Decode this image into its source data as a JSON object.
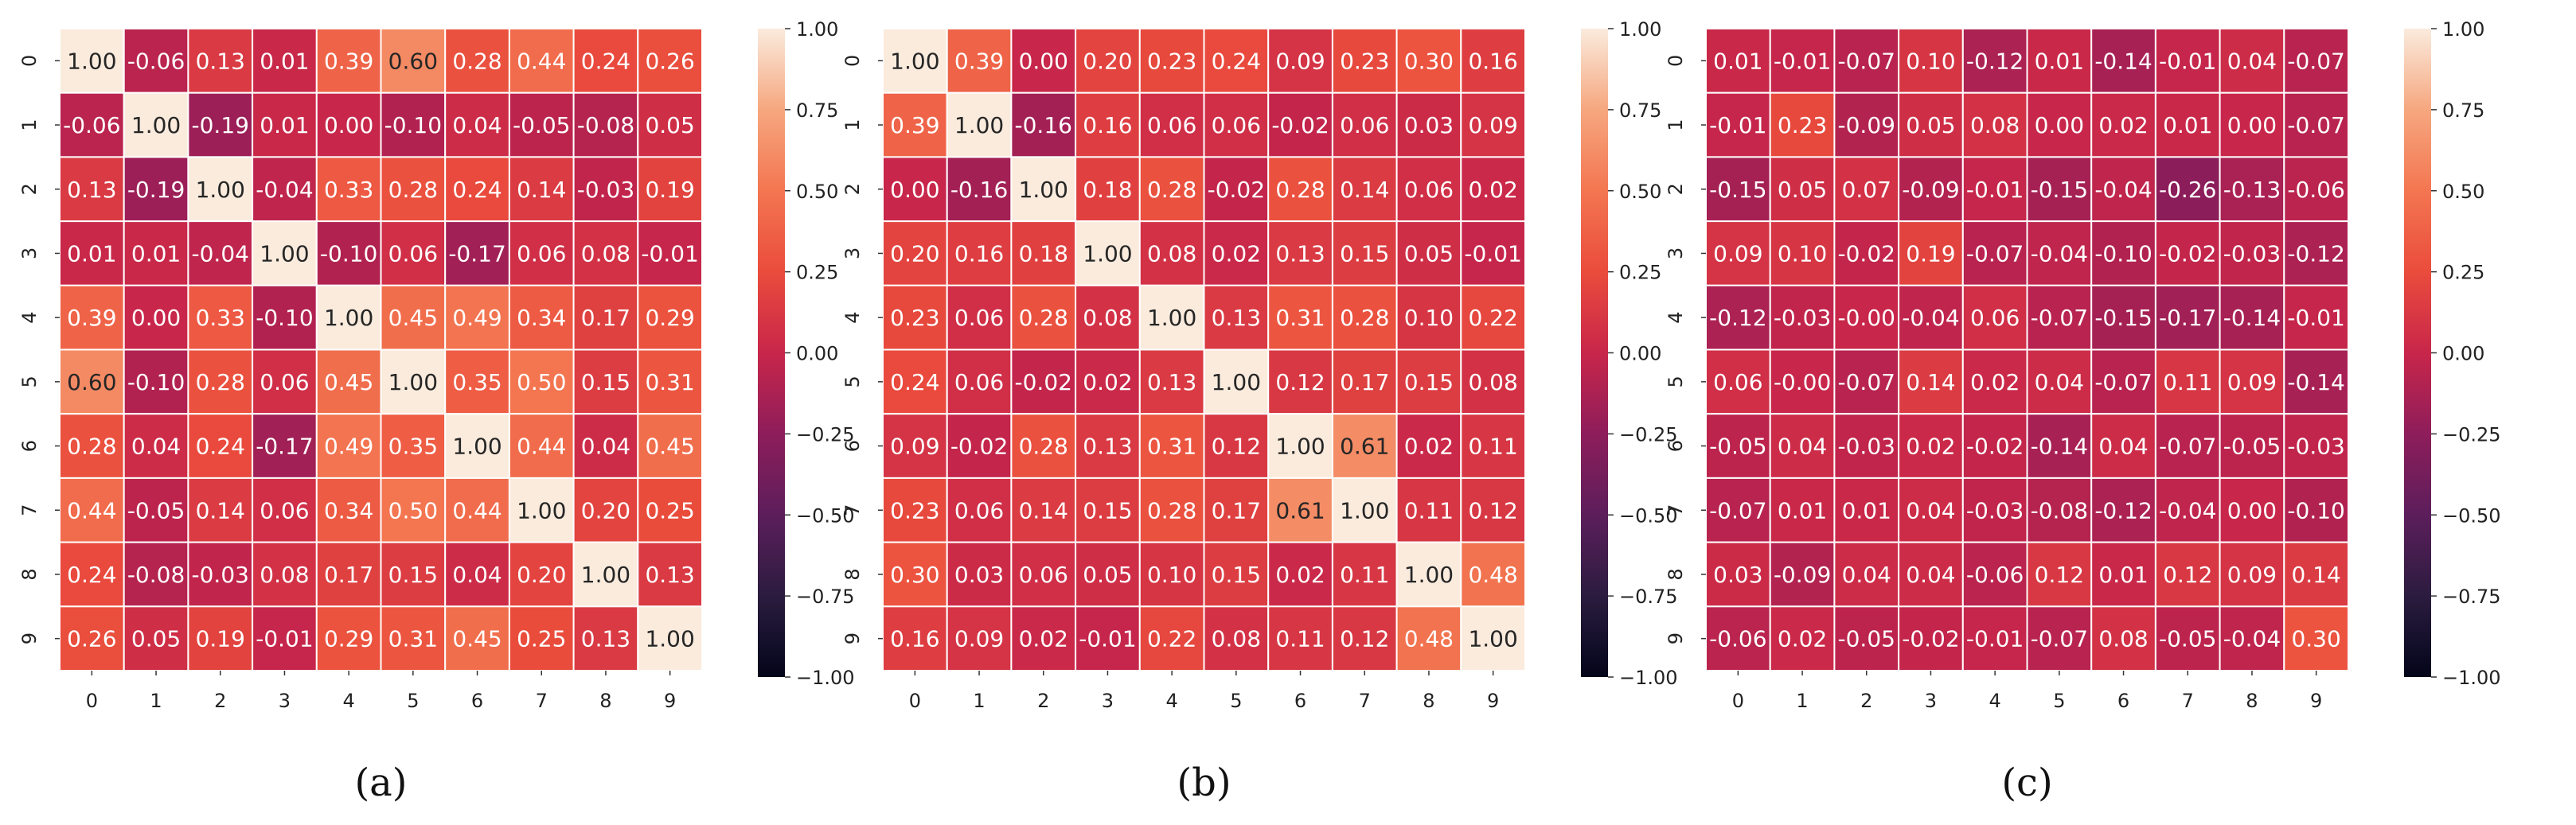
{
  "chart_data": [
    {
      "type": "heatmap",
      "panel_label": "(a)",
      "x_tick_labels": [
        "0",
        "1",
        "2",
        "3",
        "4",
        "5",
        "6",
        "7",
        "8",
        "9"
      ],
      "y_tick_labels": [
        "0",
        "1",
        "2",
        "3",
        "4",
        "5",
        "6",
        "7",
        "8",
        "9"
      ],
      "values": [
        [
          1.0,
          -0.06,
          0.13,
          0.01,
          0.39,
          0.6,
          0.28,
          0.44,
          0.24,
          0.26
        ],
        [
          -0.06,
          1.0,
          -0.19,
          0.01,
          0.0,
          -0.1,
          0.04,
          -0.05,
          -0.08,
          0.05
        ],
        [
          0.13,
          -0.19,
          1.0,
          -0.04,
          0.33,
          0.28,
          0.24,
          0.14,
          -0.03,
          0.19
        ],
        [
          0.01,
          0.01,
          -0.04,
          1.0,
          -0.1,
          0.06,
          -0.17,
          0.06,
          0.08,
          -0.01
        ],
        [
          0.39,
          0.0,
          0.33,
          -0.1,
          1.0,
          0.45,
          0.49,
          0.34,
          0.17,
          0.29
        ],
        [
          0.6,
          -0.1,
          0.28,
          0.06,
          0.45,
          1.0,
          0.35,
          0.5,
          0.15,
          0.31
        ],
        [
          0.28,
          0.04,
          0.24,
          -0.17,
          0.49,
          0.35,
          1.0,
          0.44,
          0.04,
          0.45
        ],
        [
          0.44,
          -0.05,
          0.14,
          0.06,
          0.34,
          0.5,
          0.44,
          1.0,
          0.2,
          0.25
        ],
        [
          0.24,
          -0.08,
          -0.03,
          0.08,
          0.17,
          0.15,
          0.04,
          0.2,
          1.0,
          0.13
        ],
        [
          0.26,
          0.05,
          0.19,
          -0.01,
          0.29,
          0.31,
          0.45,
          0.25,
          0.13,
          1.0
        ]
      ],
      "value_labels": [
        [
          "1.00",
          "-0.06",
          "0.13",
          "0.01",
          "0.39",
          "0.60",
          "0.28",
          "0.44",
          "0.24",
          "0.26"
        ],
        [
          "-0.06",
          "1.00",
          "-0.19",
          "0.01",
          "0.00",
          "-0.10",
          "0.04",
          "-0.05",
          "-0.08",
          "0.05"
        ],
        [
          "0.13",
          "-0.19",
          "1.00",
          "-0.04",
          "0.33",
          "0.28",
          "0.24",
          "0.14",
          "-0.03",
          "0.19"
        ],
        [
          "0.01",
          "0.01",
          "-0.04",
          "1.00",
          "-0.10",
          "0.06",
          "-0.17",
          "0.06",
          "0.08",
          "-0.01"
        ],
        [
          "0.39",
          "0.00",
          "0.33",
          "-0.10",
          "1.00",
          "0.45",
          "0.49",
          "0.34",
          "0.17",
          "0.29"
        ],
        [
          "0.60",
          "-0.10",
          "0.28",
          "0.06",
          "0.45",
          "1.00",
          "0.35",
          "0.50",
          "0.15",
          "0.31"
        ],
        [
          "0.28",
          "0.04",
          "0.24",
          "-0.17",
          "0.49",
          "0.35",
          "1.00",
          "0.44",
          "0.04",
          "0.45"
        ],
        [
          "0.44",
          "-0.05",
          "0.14",
          "0.06",
          "0.34",
          "0.50",
          "0.44",
          "1.00",
          "0.20",
          "0.25"
        ],
        [
          "0.24",
          "-0.08",
          "-0.03",
          "0.08",
          "0.17",
          "0.15",
          "0.04",
          "0.20",
          "1.00",
          "0.13"
        ],
        [
          "0.26",
          "0.05",
          "0.19",
          "-0.01",
          "0.29",
          "0.31",
          "0.45",
          "0.25",
          "0.13",
          "1.00"
        ]
      ],
      "colorbar": {
        "range": [
          -1.0,
          1.0
        ],
        "tick_labels": [
          "1.00",
          "0.75",
          "0.50",
          "0.25",
          "0.00",
          "−0.25",
          "−0.50",
          "−0.75",
          "−1.00"
        ],
        "tick_values": [
          1.0,
          0.75,
          0.5,
          0.25,
          0.0,
          -0.25,
          -0.5,
          -0.75,
          -1.0
        ]
      }
    },
    {
      "type": "heatmap",
      "panel_label": "(b)",
      "x_tick_labels": [
        "0",
        "1",
        "2",
        "3",
        "4",
        "5",
        "6",
        "7",
        "8",
        "9"
      ],
      "y_tick_labels": [
        "0",
        "1",
        "2",
        "3",
        "4",
        "5",
        "6",
        "7",
        "8",
        "9"
      ],
      "values": [
        [
          1.0,
          0.39,
          0.0,
          0.2,
          0.23,
          0.24,
          0.09,
          0.23,
          0.3,
          0.16
        ],
        [
          0.39,
          1.0,
          -0.16,
          0.16,
          0.06,
          0.06,
          -0.02,
          0.06,
          0.03,
          0.09
        ],
        [
          0.0,
          -0.16,
          1.0,
          0.18,
          0.28,
          -0.02,
          0.28,
          0.14,
          0.06,
          0.02
        ],
        [
          0.2,
          0.16,
          0.18,
          1.0,
          0.08,
          0.02,
          0.13,
          0.15,
          0.05,
          -0.01
        ],
        [
          0.23,
          0.06,
          0.28,
          0.08,
          1.0,
          0.13,
          0.31,
          0.28,
          0.1,
          0.22
        ],
        [
          0.24,
          0.06,
          -0.02,
          0.02,
          0.13,
          1.0,
          0.12,
          0.17,
          0.15,
          0.08
        ],
        [
          0.09,
          -0.02,
          0.28,
          0.13,
          0.31,
          0.12,
          1.0,
          0.61,
          0.02,
          0.11
        ],
        [
          0.23,
          0.06,
          0.14,
          0.15,
          0.28,
          0.17,
          0.61,
          1.0,
          0.11,
          0.12
        ],
        [
          0.3,
          0.03,
          0.06,
          0.05,
          0.1,
          0.15,
          0.02,
          0.11,
          1.0,
          0.48
        ],
        [
          0.16,
          0.09,
          0.02,
          -0.01,
          0.22,
          0.08,
          0.11,
          0.12,
          0.48,
          1.0
        ]
      ],
      "value_labels": [
        [
          "1.00",
          "0.39",
          "0.00",
          "0.20",
          "0.23",
          "0.24",
          "0.09",
          "0.23",
          "0.30",
          "0.16"
        ],
        [
          "0.39",
          "1.00",
          "-0.16",
          "0.16",
          "0.06",
          "0.06",
          "-0.02",
          "0.06",
          "0.03",
          "0.09"
        ],
        [
          "0.00",
          "-0.16",
          "1.00",
          "0.18",
          "0.28",
          "-0.02",
          "0.28",
          "0.14",
          "0.06",
          "0.02"
        ],
        [
          "0.20",
          "0.16",
          "0.18",
          "1.00",
          "0.08",
          "0.02",
          "0.13",
          "0.15",
          "0.05",
          "-0.01"
        ],
        [
          "0.23",
          "0.06",
          "0.28",
          "0.08",
          "1.00",
          "0.13",
          "0.31",
          "0.28",
          "0.10",
          "0.22"
        ],
        [
          "0.24",
          "0.06",
          "-0.02",
          "0.02",
          "0.13",
          "1.00",
          "0.12",
          "0.17",
          "0.15",
          "0.08"
        ],
        [
          "0.09",
          "-0.02",
          "0.28",
          "0.13",
          "0.31",
          "0.12",
          "1.00",
          "0.61",
          "0.02",
          "0.11"
        ],
        [
          "0.23",
          "0.06",
          "0.14",
          "0.15",
          "0.28",
          "0.17",
          "0.61",
          "1.00",
          "0.11",
          "0.12"
        ],
        [
          "0.30",
          "0.03",
          "0.06",
          "0.05",
          "0.10",
          "0.15",
          "0.02",
          "0.11",
          "1.00",
          "0.48"
        ],
        [
          "0.16",
          "0.09",
          "0.02",
          "-0.01",
          "0.22",
          "0.08",
          "0.11",
          "0.12",
          "0.48",
          "1.00"
        ]
      ],
      "colorbar": {
        "range": [
          -1.0,
          1.0
        ],
        "tick_labels": [
          "1.00",
          "0.75",
          "0.50",
          "0.25",
          "0.00",
          "−0.25",
          "−0.50",
          "−0.75",
          "−1.00"
        ],
        "tick_values": [
          1.0,
          0.75,
          0.5,
          0.25,
          0.0,
          -0.25,
          -0.5,
          -0.75,
          -1.0
        ]
      }
    },
    {
      "type": "heatmap",
      "panel_label": "(c)",
      "x_tick_labels": [
        "0",
        "1",
        "2",
        "3",
        "4",
        "5",
        "6",
        "7",
        "8",
        "9"
      ],
      "y_tick_labels": [
        "0",
        "1",
        "2",
        "3",
        "4",
        "5",
        "6",
        "7",
        "8",
        "9"
      ],
      "values": [
        [
          0.01,
          -0.01,
          -0.07,
          0.1,
          -0.12,
          0.01,
          -0.14,
          -0.01,
          0.04,
          -0.07
        ],
        [
          -0.01,
          0.23,
          -0.09,
          0.05,
          0.08,
          0.0,
          0.02,
          0.01,
          0.0,
          -0.07
        ],
        [
          -0.15,
          0.05,
          0.07,
          -0.09,
          -0.01,
          -0.15,
          -0.04,
          -0.26,
          -0.13,
          -0.06
        ],
        [
          0.09,
          0.1,
          -0.02,
          0.19,
          -0.07,
          -0.04,
          -0.1,
          -0.02,
          -0.03,
          -0.12
        ],
        [
          -0.12,
          -0.03,
          -0.0,
          -0.04,
          0.06,
          -0.07,
          -0.15,
          -0.17,
          -0.14,
          -0.01
        ],
        [
          0.06,
          -0.0,
          -0.07,
          0.14,
          0.02,
          0.04,
          -0.07,
          0.11,
          0.09,
          -0.14
        ],
        [
          -0.05,
          0.04,
          -0.03,
          0.02,
          -0.02,
          -0.14,
          0.04,
          -0.07,
          -0.05,
          -0.03
        ],
        [
          -0.07,
          0.01,
          0.01,
          0.04,
          -0.03,
          -0.08,
          -0.12,
          -0.04,
          0.0,
          -0.1
        ],
        [
          0.03,
          -0.09,
          0.04,
          0.04,
          -0.06,
          0.12,
          0.01,
          0.12,
          0.09,
          0.14
        ],
        [
          -0.06,
          0.02,
          -0.05,
          -0.02,
          -0.01,
          -0.07,
          0.08,
          -0.05,
          -0.04,
          0.3
        ]
      ],
      "value_labels": [
        [
          "0.01",
          "-0.01",
          "-0.07",
          "0.10",
          "-0.12",
          "0.01",
          "-0.14",
          "-0.01",
          "0.04",
          "-0.07"
        ],
        [
          "-0.01",
          "0.23",
          "-0.09",
          "0.05",
          "0.08",
          "0.00",
          "0.02",
          "0.01",
          "0.00",
          "-0.07"
        ],
        [
          "-0.15",
          "0.05",
          "0.07",
          "-0.09",
          "-0.01",
          "-0.15",
          "-0.04",
          "-0.26",
          "-0.13",
          "-0.06"
        ],
        [
          "0.09",
          "0.10",
          "-0.02",
          "0.19",
          "-0.07",
          "-0.04",
          "-0.10",
          "-0.02",
          "-0.03",
          "-0.12"
        ],
        [
          "-0.12",
          "-0.03",
          "-0.00",
          "-0.04",
          "0.06",
          "-0.07",
          "-0.15",
          "-0.17",
          "-0.14",
          "-0.01"
        ],
        [
          "0.06",
          "-0.00",
          "-0.07",
          "0.14",
          "0.02",
          "0.04",
          "-0.07",
          "0.11",
          "0.09",
          "-0.14"
        ],
        [
          "-0.05",
          "0.04",
          "-0.03",
          "0.02",
          "-0.02",
          "-0.14",
          "0.04",
          "-0.07",
          "-0.05",
          "-0.03"
        ],
        [
          "-0.07",
          "0.01",
          "0.01",
          "0.04",
          "-0.03",
          "-0.08",
          "-0.12",
          "-0.04",
          "0.00",
          "-0.10"
        ],
        [
          "0.03",
          "-0.09",
          "0.04",
          "0.04",
          "-0.06",
          "0.12",
          "0.01",
          "0.12",
          "0.09",
          "0.14"
        ],
        [
          "-0.06",
          "0.02",
          "-0.05",
          "-0.02",
          "-0.01",
          "-0.07",
          "0.08",
          "-0.05",
          "-0.04",
          "0.30"
        ]
      ],
      "colorbar": {
        "range": [
          -1.0,
          1.0
        ],
        "tick_labels": [
          "1.00",
          "0.75",
          "0.50",
          "0.25",
          "0.00",
          "−0.25",
          "−0.50",
          "−0.75",
          "−1.00"
        ],
        "tick_values": [
          1.0,
          0.75,
          0.5,
          0.25,
          0.0,
          -0.25,
          -0.5,
          -0.75,
          -1.0
        ]
      }
    }
  ],
  "colormap": {
    "name": "rocket",
    "stops": [
      {
        "t": 0.0,
        "color": "#03051a"
      },
      {
        "t": 0.125,
        "color": "#2b1c3f"
      },
      {
        "t": 0.25,
        "color": "#5c1e5b"
      },
      {
        "t": 0.375,
        "color": "#8e1d5b"
      },
      {
        "t": 0.5,
        "color": "#c8264a"
      },
      {
        "t": 0.625,
        "color": "#ea4c3c"
      },
      {
        "t": 0.75,
        "color": "#f37651"
      },
      {
        "t": 0.875,
        "color": "#f6a77f"
      },
      {
        "t": 1.0,
        "color": "#faebdd"
      }
    ],
    "dark_text_color": "#262626",
    "light_text_color": "#ffffff"
  }
}
